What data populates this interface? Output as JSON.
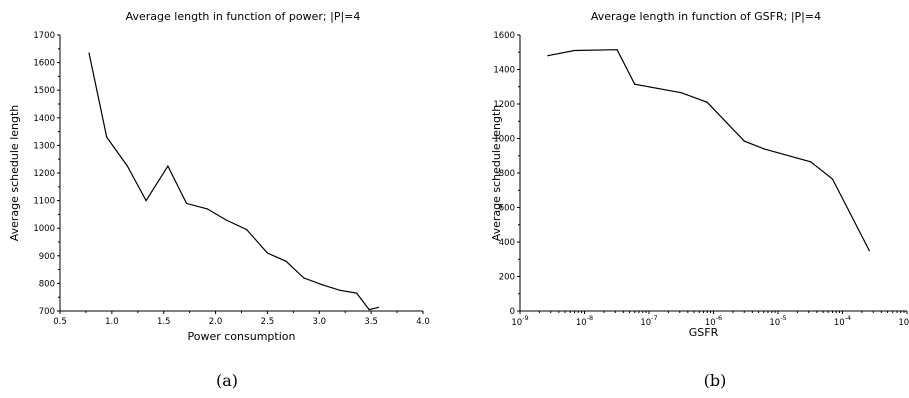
{
  "chart_data": [
    {
      "type": "line",
      "panel_label": "(a)",
      "title": "Average length in function of power; |P|=4",
      "xlabel": "Power consumption",
      "ylabel": "Average schedule length",
      "xlim": [
        0.5,
        4.0
      ],
      "ylim": [
        700,
        1700
      ],
      "xticks": [
        "0.5",
        "1.0",
        "1.5",
        "2.0",
        "2.5",
        "3.0",
        "3.5",
        "4.0"
      ],
      "yticks": [
        "700",
        "800",
        "900",
        "1000",
        "1100",
        "1200",
        "1300",
        "1400",
        "1500",
        "1600",
        "1700"
      ],
      "grid": false,
      "series": [
        {
          "x": [
            0.78,
            0.95,
            1.15,
            1.33,
            1.54,
            1.72,
            1.92,
            2.1,
            2.3,
            2.5,
            2.68,
            2.85,
            3.03,
            3.2,
            3.36,
            3.48,
            3.57
          ],
          "y": [
            1635,
            1330,
            1225,
            1100,
            1225,
            1090,
            1070,
            1030,
            995,
            910,
            880,
            820,
            795,
            775,
            765,
            705,
            713
          ]
        }
      ]
    },
    {
      "type": "line",
      "panel_label": "(b)",
      "title": "Average length in function of GSFR; |P|=4",
      "xlabel": "GSFR",
      "ylabel": "Average schedule length",
      "xscale": "log",
      "xlim": [
        1e-09,
        0.001
      ],
      "ylim": [
        0,
        1600
      ],
      "xticks": [
        {
          "base": "10",
          "exp": "-9"
        },
        {
          "base": "10",
          "exp": "-8"
        },
        {
          "base": "10",
          "exp": "-7"
        },
        {
          "base": "10",
          "exp": "-6"
        },
        {
          "base": "10",
          "exp": "-5"
        },
        {
          "base": "10",
          "exp": "-4"
        },
        {
          "base": "10",
          "exp": "-3"
        }
      ],
      "yticks": [
        "0",
        "200",
        "400",
        "600",
        "800",
        "1000",
        "1200",
        "1400",
        "1600"
      ],
      "grid": false,
      "series": [
        {
          "x": [
            2.7e-09,
            7e-09,
            3.2e-08,
            6e-08,
            3.2e-07,
            8e-07,
            3e-06,
            6e-06,
            3.2e-05,
            7e-05,
            0.00026
          ],
          "y": [
            1480,
            1510,
            1515,
            1315,
            1265,
            1210,
            985,
            940,
            865,
            765,
            350
          ]
        }
      ]
    }
  ]
}
